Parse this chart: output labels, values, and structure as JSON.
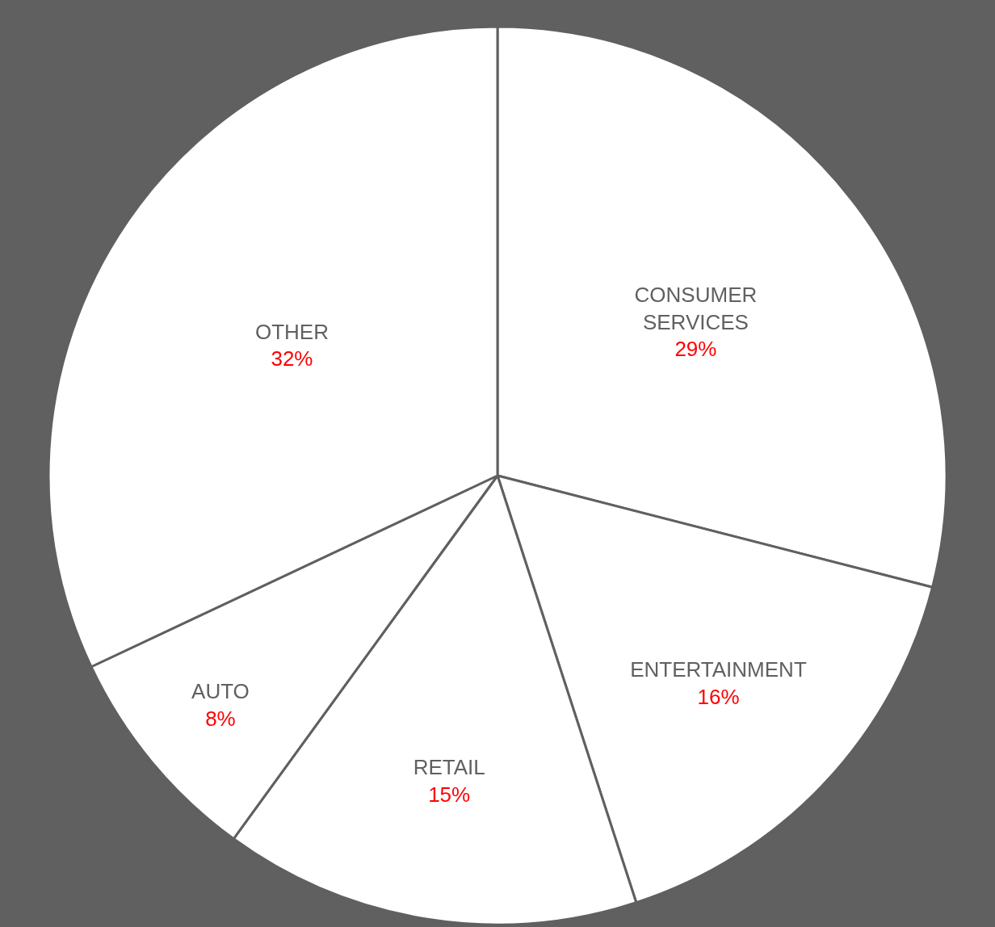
{
  "chart_data": {
    "type": "pie",
    "categories": [
      "CONSUMER SERVICES",
      "ENTERTAINMENT",
      "RETAIL",
      "AUTO",
      "OTHER"
    ],
    "values": [
      29,
      16,
      15,
      8,
      32
    ],
    "value_labels": [
      "29%",
      "16%",
      "15%",
      "8%",
      "32%"
    ],
    "colors": [
      "#ffffff",
      "#ffffff",
      "#ffffff",
      "#ffffff",
      "#ffffff"
    ],
    "legend": false
  }
}
